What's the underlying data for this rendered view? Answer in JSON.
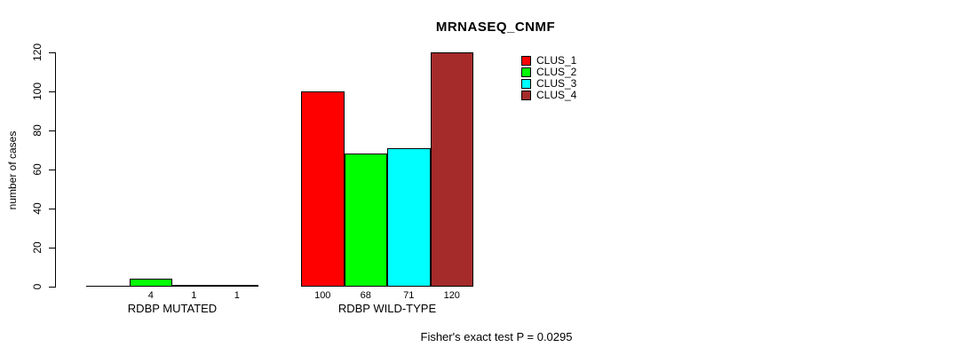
{
  "page": {
    "background": "#ffffff"
  },
  "chart_data": {
    "type": "bar",
    "title": "MRNASEQ_CNMF",
    "ylabel": "number of cases",
    "xlabel": "",
    "annotation": "Fisher's exact test P = 0.0295",
    "categories": [
      "RDBP MUTATED",
      "RDBP WILD-TYPE"
    ],
    "series": [
      {
        "name": "CLUS_1",
        "color": "#ff0000",
        "values": [
          0,
          100
        ]
      },
      {
        "name": "CLUS_2",
        "color": "#00ff00",
        "values": [
          4,
          68
        ]
      },
      {
        "name": "CLUS_3",
        "color": "#00ffff",
        "values": [
          1,
          71
        ]
      },
      {
        "name": "CLUS_4",
        "color": "#a52a2a",
        "values": [
          1,
          120
        ]
      }
    ],
    "bar_value_labels": [
      [
        "",
        "4",
        "1",
        "1"
      ],
      [
        "100",
        "68",
        "71",
        "120"
      ]
    ],
    "yticks": [
      "0",
      "20",
      "40",
      "60",
      "80",
      "100",
      "120"
    ],
    "ylim": [
      0,
      120
    ],
    "grid": false,
    "legend_position": "top-right",
    "bar_border_color": "#000000",
    "axis_color": "#000000"
  }
}
